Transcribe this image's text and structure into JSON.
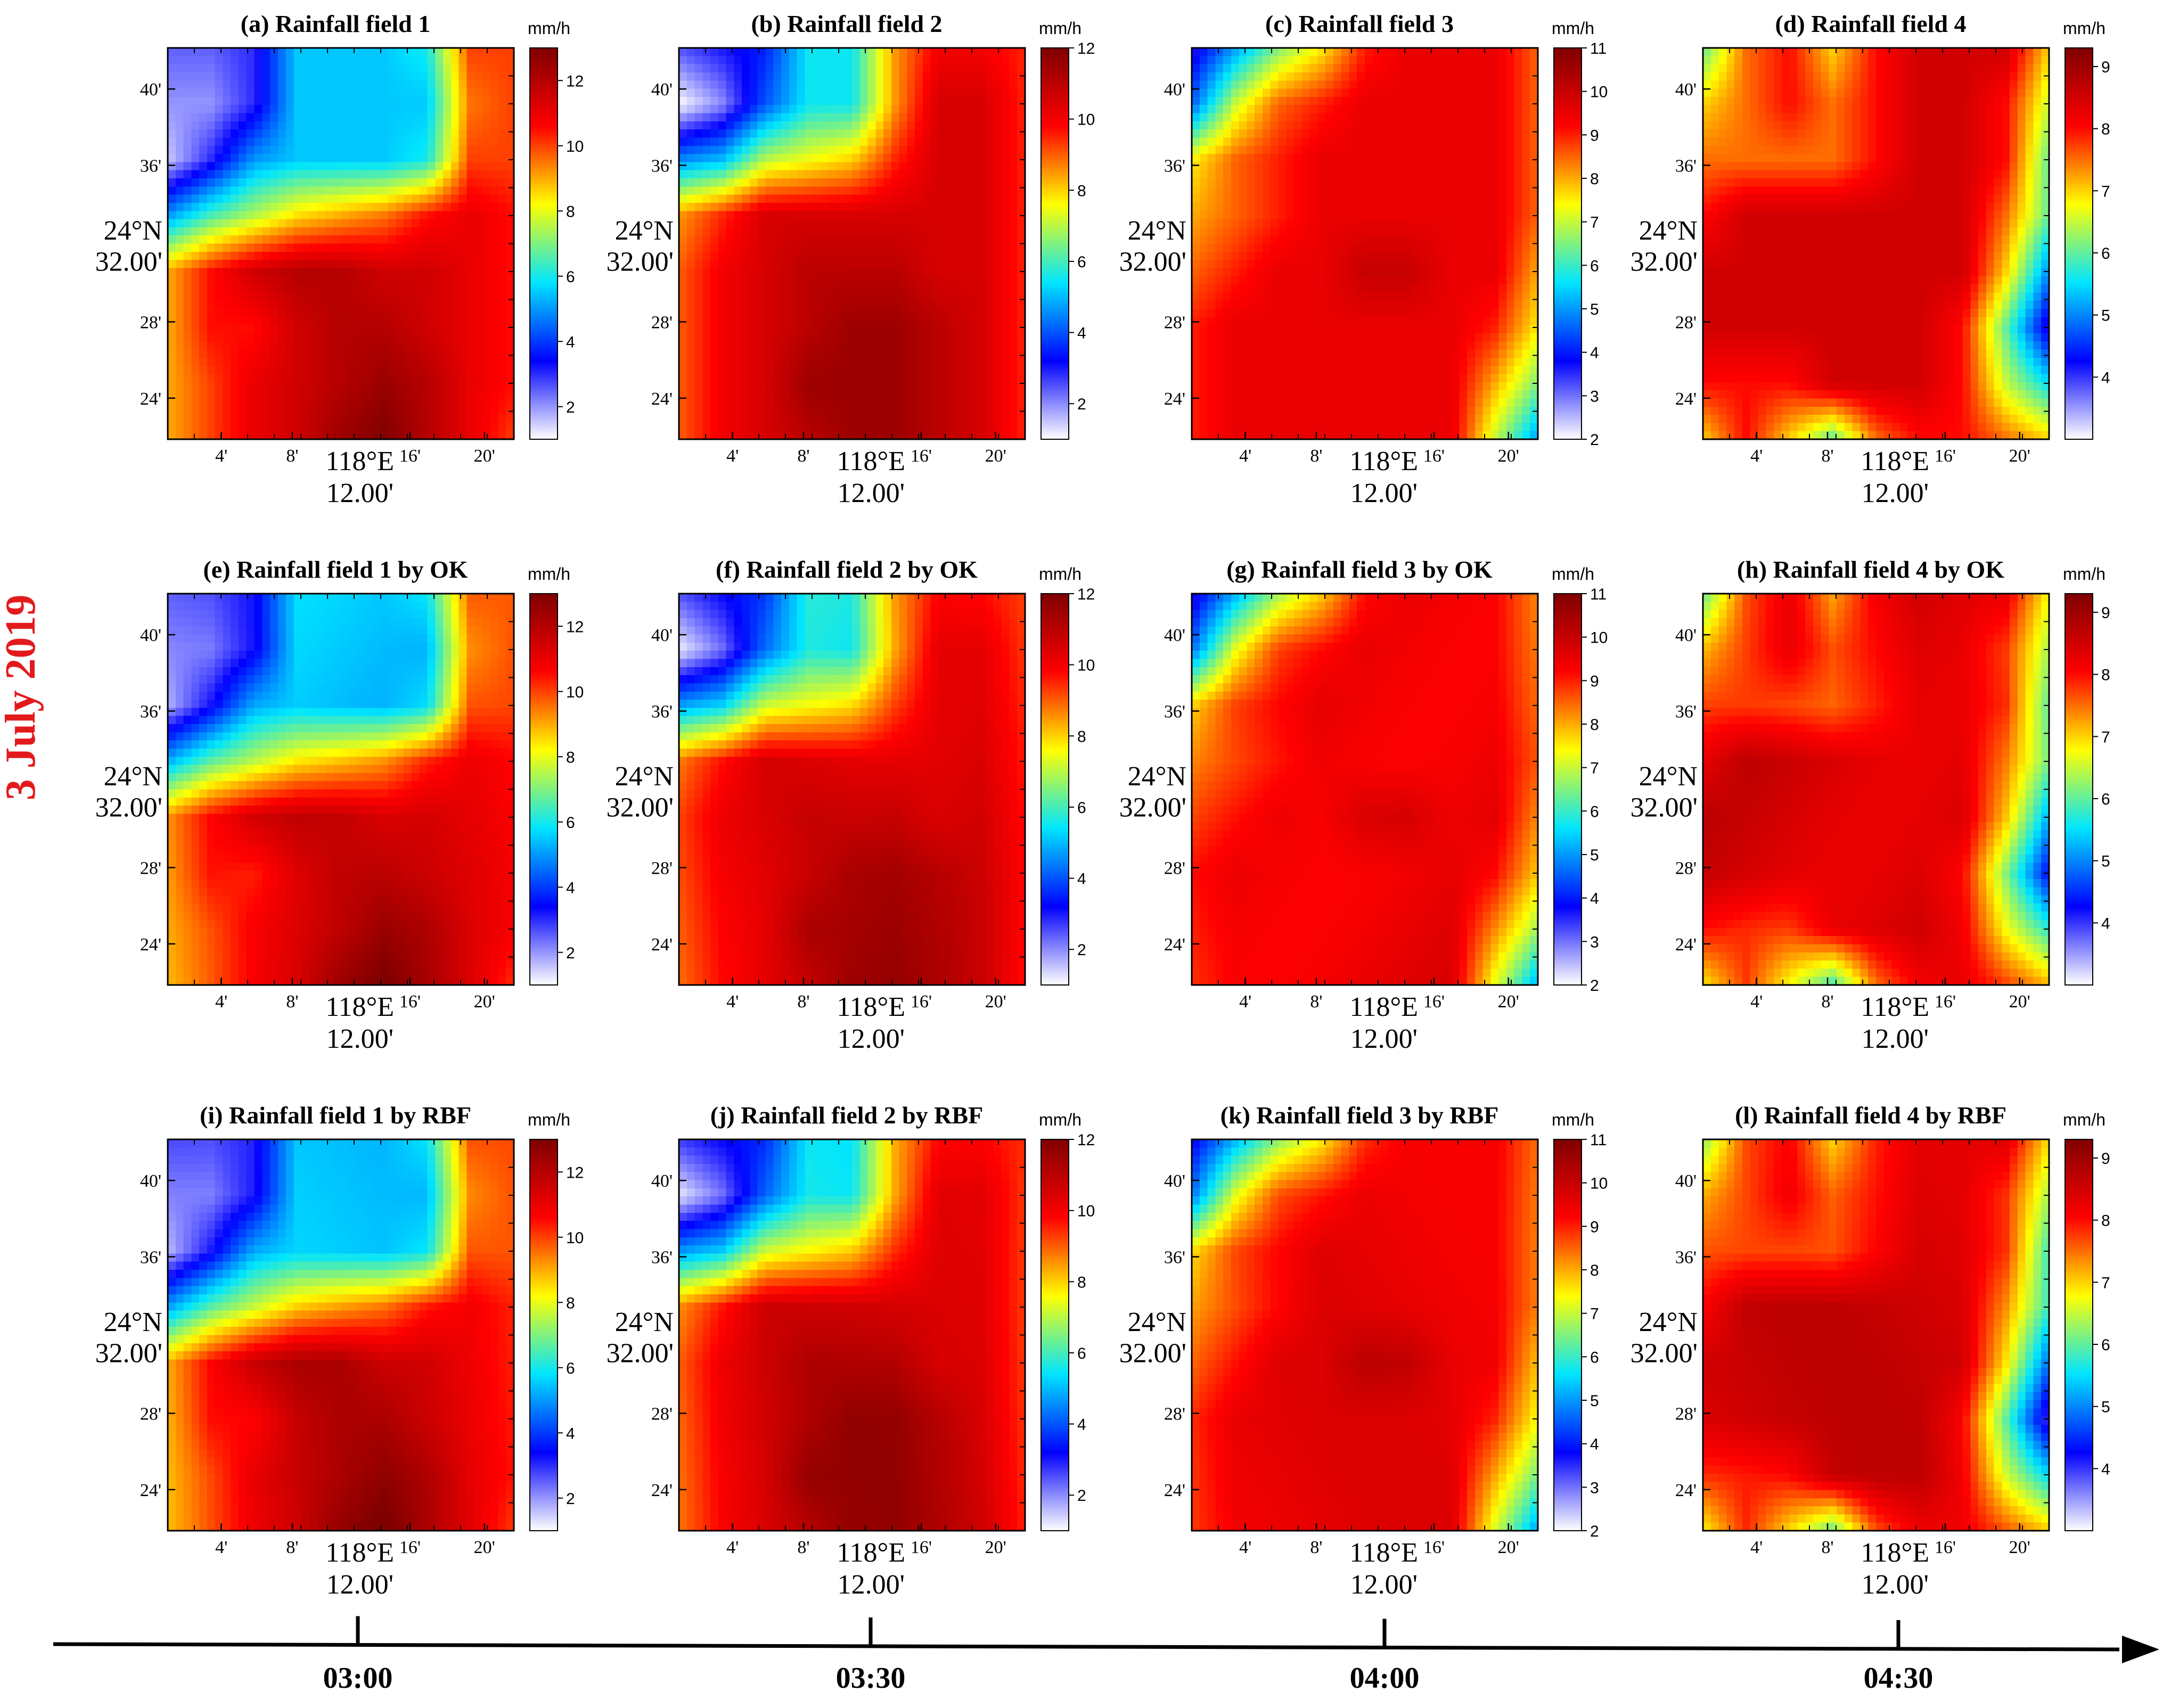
{
  "date_label": "3 July 2019",
  "timeline": {
    "labels": [
      "03:00",
      "03:30",
      "04:00",
      "04:30"
    ]
  },
  "chart_data": {
    "type": "heatmap",
    "unit": "mm/h",
    "x_ticks": [
      "4'",
      "8'",
      "16'",
      "20'"
    ],
    "x_center_label": [
      "118°E",
      "12.00'"
    ],
    "y_ticks": [
      "40'",
      "36'",
      "28'",
      "24'"
    ],
    "y_center_label": [
      "24°N",
      "32.00'"
    ],
    "colors": [
      "#ffffff",
      "#0000ff",
      "#00e5ff",
      "#ffff00",
      "#ff0000",
      "#800000"
    ],
    "panels": [
      {
        "title": "(a) Rainfall field 1",
        "field": 1,
        "method": "observed",
        "range": [
          1,
          13
        ],
        "cb_ticks": [
          2,
          4,
          6,
          8,
          10,
          12
        ]
      },
      {
        "title": "(b) Rainfall field 2",
        "field": 2,
        "method": "observed",
        "range": [
          1,
          12
        ],
        "cb_ticks": [
          2,
          4,
          6,
          8,
          10,
          12
        ]
      },
      {
        "title": "(c) Rainfall field 3",
        "field": 3,
        "method": "observed",
        "range": [
          2,
          11
        ],
        "cb_ticks": [
          2,
          3,
          4,
          5,
          6,
          7,
          8,
          9,
          10,
          11
        ]
      },
      {
        "title": "(d) Rainfall field 4",
        "field": 4,
        "method": "observed",
        "range": [
          3,
          9.3
        ],
        "cb_ticks": [
          4,
          5,
          6,
          7,
          8,
          9
        ]
      },
      {
        "title": "(e) Rainfall field 1 by OK",
        "field": 1,
        "method": "OK",
        "range": [
          1,
          13
        ],
        "cb_ticks": [
          2,
          4,
          6,
          8,
          10,
          12
        ]
      },
      {
        "title": "(f) Rainfall field 2 by OK",
        "field": 2,
        "method": "OK",
        "range": [
          1,
          12
        ],
        "cb_ticks": [
          2,
          4,
          6,
          8,
          10,
          12
        ]
      },
      {
        "title": "(g) Rainfall field 3 by OK",
        "field": 3,
        "method": "OK",
        "range": [
          2,
          11
        ],
        "cb_ticks": [
          2,
          3,
          4,
          5,
          6,
          7,
          8,
          9,
          10,
          11
        ]
      },
      {
        "title": "(h) Rainfall field 4 by OK",
        "field": 4,
        "method": "OK",
        "range": [
          3,
          9.3
        ],
        "cb_ticks": [
          4,
          5,
          6,
          7,
          8,
          9
        ]
      },
      {
        "title": "(i) Rainfall field 1 by RBF",
        "field": 1,
        "method": "RBF",
        "range": [
          1,
          13
        ],
        "cb_ticks": [
          2,
          4,
          6,
          8,
          10,
          12
        ]
      },
      {
        "title": "(j) Rainfall field 2 by RBF",
        "field": 2,
        "method": "RBF",
        "range": [
          1,
          12
        ],
        "cb_ticks": [
          2,
          4,
          6,
          8,
          10,
          12
        ]
      },
      {
        "title": "(k) Rainfall field 3 by RBF",
        "field": 3,
        "method": "RBF",
        "range": [
          2,
          11
        ],
        "cb_ticks": [
          2,
          3,
          4,
          5,
          6,
          7,
          8,
          9,
          10,
          11
        ]
      },
      {
        "title": "(l) Rainfall field 4 by RBF",
        "field": 4,
        "method": "RBF",
        "range": [
          3,
          9.3
        ],
        "cb_ticks": [
          4,
          5,
          6,
          7,
          8,
          9
        ]
      }
    ],
    "fields": [
      {
        "grid": [
          [
            2.5,
            2.5,
            3.0,
            5.5,
            5.5,
            5.5,
            6.0,
            10.0,
            10.0
          ],
          [
            2.0,
            2.0,
            3.0,
            5.5,
            5.5,
            5.5,
            5.5,
            9.5,
            10.0
          ],
          [
            1.5,
            3.0,
            5.0,
            5.5,
            5.5,
            5.5,
            6.0,
            10.0,
            10.0
          ],
          [
            5.0,
            6.5,
            7.5,
            8.5,
            9.0,
            9.5,
            10.5,
            11.0,
            10.5
          ],
          [
            9.0,
            10.5,
            11.5,
            12.0,
            12.0,
            11.5,
            11.5,
            11.0,
            10.5
          ],
          [
            9.0,
            10.5,
            10.5,
            11.5,
            12.0,
            12.0,
            11.5,
            11.0,
            10.5
          ],
          [
            9.0,
            10.0,
            11.0,
            11.5,
            12.0,
            12.5,
            12.0,
            11.0,
            10.5
          ],
          [
            9.0,
            10.0,
            11.0,
            11.5,
            12.5,
            13.0,
            12.0,
            11.0,
            10.0
          ]
        ]
      },
      {
        "grid": [
          [
            2.5,
            3.0,
            3.5,
            5.5,
            5.5,
            8.5,
            10.0,
            10.0,
            9.5
          ],
          [
            1.0,
            2.0,
            4.0,
            5.5,
            5.5,
            8.5,
            10.5,
            10.5,
            9.5
          ],
          [
            4.5,
            5.0,
            7.0,
            7.5,
            8.0,
            9.5,
            10.5,
            10.5,
            9.5
          ],
          [
            8.5,
            9.5,
            10.5,
            10.5,
            10.5,
            10.5,
            10.5,
            10.5,
            9.5
          ],
          [
            9.0,
            10.0,
            10.5,
            11.0,
            11.0,
            11.0,
            10.5,
            10.5,
            9.5
          ],
          [
            9.0,
            10.0,
            10.5,
            11.0,
            11.5,
            11.5,
            11.0,
            10.5,
            9.5
          ],
          [
            9.0,
            10.0,
            10.5,
            11.5,
            11.5,
            11.5,
            11.0,
            10.5,
            9.5
          ],
          [
            9.0,
            10.0,
            10.5,
            11.0,
            11.5,
            11.5,
            11.0,
            10.5,
            9.5
          ]
        ]
      },
      {
        "grid": [
          [
            3.5,
            5.0,
            6.5,
            7.5,
            9.0,
            9.5,
            9.5,
            9.5,
            8.5
          ],
          [
            4.5,
            7.0,
            8.5,
            9.0,
            9.5,
            9.5,
            9.5,
            9.5,
            8.5
          ],
          [
            7.5,
            8.5,
            9.0,
            9.5,
            9.5,
            9.5,
            9.5,
            9.5,
            8.5
          ],
          [
            8.0,
            8.5,
            9.0,
            9.5,
            9.5,
            9.5,
            9.5,
            9.5,
            8.5
          ],
          [
            8.5,
            9.0,
            9.5,
            9.5,
            10.0,
            10.0,
            9.5,
            9.5,
            8.0
          ],
          [
            9.0,
            9.5,
            9.5,
            9.5,
            9.5,
            9.5,
            9.5,
            9.0,
            7.5
          ],
          [
            9.0,
            9.5,
            9.5,
            9.5,
            9.5,
            9.5,
            9.5,
            8.0,
            6.5
          ],
          [
            9.0,
            9.5,
            9.5,
            9.5,
            9.5,
            9.5,
            9.5,
            7.0,
            5.0
          ]
        ]
      },
      {
        "grid": [
          [
            6.0,
            7.5,
            8.0,
            7.0,
            8.0,
            8.5,
            8.5,
            8.5,
            7.0
          ],
          [
            7.0,
            7.5,
            8.0,
            7.5,
            8.0,
            8.5,
            8.5,
            8.0,
            6.5
          ],
          [
            7.5,
            7.5,
            7.5,
            7.5,
            8.0,
            8.5,
            8.5,
            8.0,
            6.0
          ],
          [
            8.0,
            8.5,
            8.5,
            8.5,
            8.5,
            8.5,
            8.5,
            7.5,
            6.0
          ],
          [
            8.5,
            8.5,
            8.5,
            8.5,
            8.5,
            8.5,
            8.5,
            7.0,
            5.0
          ],
          [
            8.5,
            8.5,
            8.5,
            8.5,
            8.5,
            8.5,
            8.0,
            6.0,
            4.0
          ],
          [
            8.0,
            8.0,
            8.0,
            8.5,
            8.5,
            8.5,
            8.0,
            6.5,
            5.5
          ],
          [
            7.0,
            8.0,
            7.0,
            6.0,
            7.5,
            8.0,
            8.0,
            7.5,
            7.0
          ]
        ]
      }
    ]
  }
}
